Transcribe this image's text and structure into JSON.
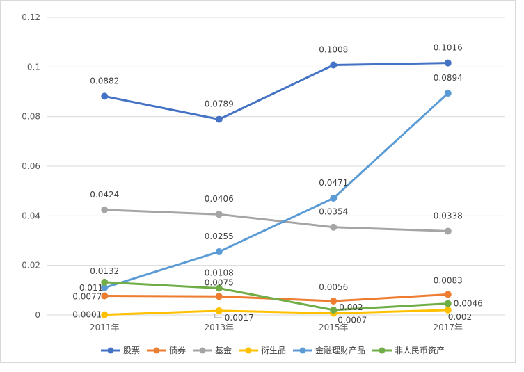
{
  "chart_data": {
    "type": "line",
    "categories": [
      "2011年",
      "2013年",
      "2015年",
      "2017年"
    ],
    "ylim": [
      0,
      0.12
    ],
    "yticks": [
      "0",
      "0.02",
      "0.04",
      "0.06",
      "0.08",
      "0.1",
      "0.12"
    ],
    "grid": true,
    "legend_position": "bottom",
    "series": [
      {
        "name": "股票",
        "color": "#4472C4",
        "values": [
          0.0882,
          0.0789,
          0.1008,
          0.1016
        ],
        "labels": [
          "0.0882",
          "0.0789",
          "0.1008",
          "0.1016"
        ]
      },
      {
        "name": "债券",
        "color": "#ED7D31",
        "values": [
          0.0077,
          0.0075,
          0.0056,
          0.0083
        ],
        "labels": [
          "0.0077",
          "0.0075",
          "0.0056",
          "0.0083"
        ]
      },
      {
        "name": "基金",
        "color": "#A5A5A5",
        "values": [
          0.0424,
          0.0406,
          0.0354,
          0.0338
        ],
        "labels": [
          "0.0424",
          "0.0406",
          "0.0354",
          "0.0338"
        ]
      },
      {
        "name": "衍生品",
        "color": "#FFC000",
        "values": [
          0.0001,
          0.0017,
          0.0007,
          0.002
        ],
        "labels": [
          "0.0001",
          "0.0017",
          "0.0007",
          "0.002"
        ]
      },
      {
        "name": "金融理财产品",
        "color": "#5B9BD5",
        "values": [
          0.011,
          0.0255,
          0.0471,
          0.0894
        ],
        "labels": [
          "0.011",
          "0.0255",
          "0.0471",
          "0.0894"
        ]
      },
      {
        "name": "非人民币资产",
        "color": "#70AD47",
        "values": [
          0.0132,
          0.0108,
          0.002,
          0.0046
        ],
        "labels": [
          "0.0132",
          "0.0108",
          "0.002",
          "0.0046"
        ]
      }
    ]
  }
}
